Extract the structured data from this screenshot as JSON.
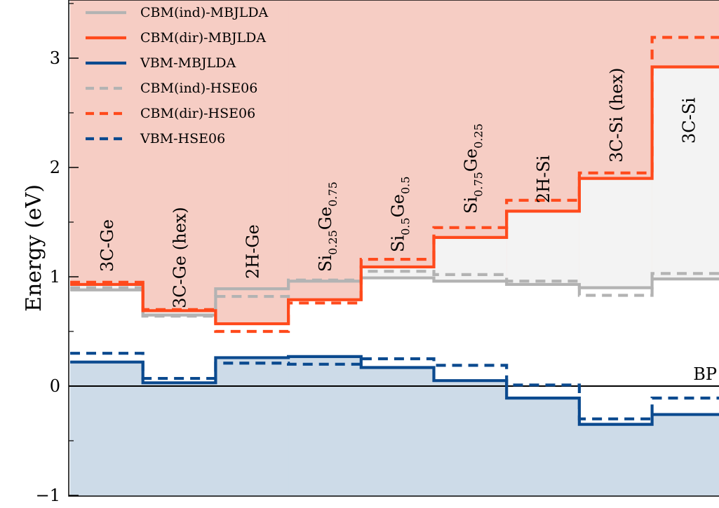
{
  "chart_data": {
    "type": "line",
    "ylabel": "Energy (eV)",
    "ylim": [
      -1.0,
      3.5
    ],
    "y_ticks": [
      -1,
      0,
      1,
      2,
      3
    ],
    "y_tick_labels": [
      "−1",
      "0",
      "1",
      "2",
      "3"
    ],
    "reference_line": {
      "y": 0,
      "label": "BP"
    },
    "categories": [
      {
        "text": "3C-Ge"
      },
      {
        "text": "3C-Ge (hex)"
      },
      {
        "text": "2H-Ge"
      },
      {
        "text": "Si",
        "parts": [
          [
            "Si",
            false
          ],
          [
            "0.25",
            true
          ],
          [
            "Ge",
            false
          ],
          [
            "0.75",
            true
          ]
        ]
      },
      {
        "text": "Si",
        "parts": [
          [
            "Si",
            false
          ],
          [
            "0.5",
            true
          ],
          [
            "Ge",
            false
          ],
          [
            "0.5",
            true
          ]
        ]
      },
      {
        "text": "Si",
        "parts": [
          [
            "Si",
            false
          ],
          [
            "0.75",
            true
          ],
          [
            "Ge",
            false
          ],
          [
            "0.25",
            true
          ]
        ]
      },
      {
        "text": "2H-Si"
      },
      {
        "text": "3C-Si (hex)"
      },
      {
        "text": "3C-Si"
      }
    ],
    "series": [
      {
        "name": "CBM(ind)-MBJLDA",
        "style": "solid",
        "color": "#b3b3b3",
        "values": [
          0.88,
          0.65,
          0.89,
          0.96,
          0.99,
          0.96,
          0.93,
          0.9,
          0.98
        ]
      },
      {
        "name": "CBM(dir)-MBJLDA",
        "style": "solid",
        "color": "#ff4a1c",
        "values": [
          0.93,
          0.69,
          0.57,
          0.79,
          1.09,
          1.36,
          1.6,
          1.9,
          2.92
        ]
      },
      {
        "name": "VBM-MBJLDA",
        "style": "solid",
        "color": "#0b4a8f",
        "values": [
          0.22,
          0.03,
          0.26,
          0.27,
          0.17,
          0.05,
          -0.11,
          -0.35,
          -0.26
        ]
      },
      {
        "name": "CBM(ind)-HSE06",
        "style": "dashed",
        "color": "#b3b3b3",
        "values": [
          0.9,
          0.64,
          0.82,
          0.97,
          1.05,
          1.02,
          0.96,
          0.83,
          1.03
        ]
      },
      {
        "name": "CBM(dir)-HSE06",
        "style": "dashed",
        "color": "#ff4a1c",
        "values": [
          0.95,
          0.7,
          0.5,
          0.76,
          1.16,
          1.45,
          1.7,
          1.95,
          3.19
        ]
      },
      {
        "name": "VBM-HSE06",
        "style": "dashed",
        "color": "#0b4a8f",
        "values": [
          0.3,
          0.07,
          0.21,
          0.2,
          0.25,
          0.19,
          0.01,
          -0.3,
          -0.11
        ]
      }
    ],
    "fills": {
      "conduction": "#f6cdc4",
      "gap": "#ffffff",
      "valence": "#cddbe8",
      "indirect_region": "#f3f3f3"
    },
    "grid": false,
    "legend_position": "top-left"
  }
}
